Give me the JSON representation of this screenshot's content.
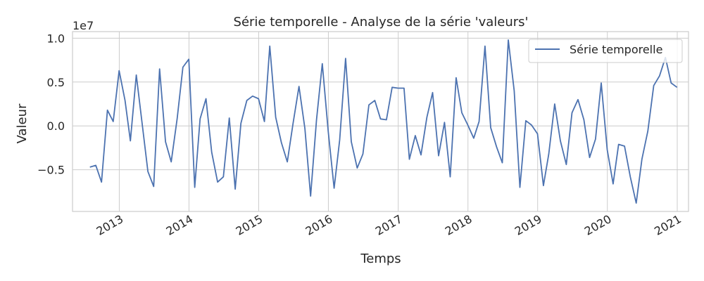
{
  "chart_data": {
    "type": "line",
    "title": "Série temporelle - Analyse de la série 'valeurs'",
    "xlabel": "Temps",
    "ylabel": "Valeur",
    "y_offset_label": "1e7",
    "x_type": "date",
    "xlim": [
      "2012-05-01",
      "2021-03-01"
    ],
    "ylim": [
      -0.975,
      1.075
    ],
    "y_scale_multiplier": 10000000,
    "x_ticks": [
      "2013",
      "2014",
      "2015",
      "2016",
      "2017",
      "2018",
      "2019",
      "2020",
      "2021"
    ],
    "y_ticks": [
      {
        "value": -0.5,
        "label": "−0.5"
      },
      {
        "value": 0.0,
        "label": "0.0"
      },
      {
        "value": 0.5,
        "label": "0.5"
      },
      {
        "value": 1.0,
        "label": "1.0"
      }
    ],
    "grid": true,
    "legend_position": "upper right",
    "series": [
      {
        "name": "Série temporelle",
        "color": "#4c72b0",
        "points": [
          [
            "2012-07-31",
            -0.47
          ],
          [
            "2012-08-31",
            -0.45
          ],
          [
            "2012-09-30",
            -0.64
          ],
          [
            "2012-10-31",
            0.18
          ],
          [
            "2012-11-30",
            0.05
          ],
          [
            "2012-12-31",
            0.63
          ],
          [
            "2013-01-31",
            0.29
          ],
          [
            "2013-02-28",
            -0.17
          ],
          [
            "2013-03-31",
            0.58
          ],
          [
            "2013-04-30",
            0.04
          ],
          [
            "2013-05-31",
            -0.52
          ],
          [
            "2013-06-30",
            -0.69
          ],
          [
            "2013-07-31",
            0.65
          ],
          [
            "2013-08-31",
            -0.18
          ],
          [
            "2013-09-30",
            -0.41
          ],
          [
            "2013-10-31",
            0.08
          ],
          [
            "2013-11-30",
            0.67
          ],
          [
            "2013-12-31",
            0.76
          ],
          [
            "2014-01-31",
            -0.7
          ],
          [
            "2014-02-28",
            0.08
          ],
          [
            "2014-03-31",
            0.31
          ],
          [
            "2014-04-30",
            -0.3
          ],
          [
            "2014-05-31",
            -0.64
          ],
          [
            "2014-06-30",
            -0.58
          ],
          [
            "2014-07-31",
            0.09
          ],
          [
            "2014-08-31",
            -0.72
          ],
          [
            "2014-09-30",
            0.03
          ],
          [
            "2014-10-31",
            0.29
          ],
          [
            "2014-11-30",
            0.34
          ],
          [
            "2014-12-31",
            0.31
          ],
          [
            "2015-01-31",
            0.05
          ],
          [
            "2015-02-28",
            0.91
          ],
          [
            "2015-03-31",
            0.1
          ],
          [
            "2015-04-30",
            -0.19
          ],
          [
            "2015-05-31",
            -0.41
          ],
          [
            "2015-06-30",
            0.03
          ],
          [
            "2015-07-31",
            0.45
          ],
          [
            "2015-08-31",
            -0.03
          ],
          [
            "2015-09-30",
            -0.8
          ],
          [
            "2015-10-31",
            0.07
          ],
          [
            "2015-11-30",
            0.71
          ],
          [
            "2015-12-31",
            -0.06
          ],
          [
            "2016-01-31",
            -0.71
          ],
          [
            "2016-02-29",
            -0.16
          ],
          [
            "2016-03-31",
            0.77
          ],
          [
            "2016-04-30",
            -0.18
          ],
          [
            "2016-05-31",
            -0.48
          ],
          [
            "2016-06-30",
            -0.32
          ],
          [
            "2016-07-31",
            0.24
          ],
          [
            "2016-08-31",
            0.29
          ],
          [
            "2016-09-30",
            0.08
          ],
          [
            "2016-10-31",
            0.07
          ],
          [
            "2016-11-30",
            0.44
          ],
          [
            "2016-12-31",
            0.43
          ],
          [
            "2017-01-31",
            0.43
          ],
          [
            "2017-02-28",
            -0.38
          ],
          [
            "2017-03-31",
            -0.11
          ],
          [
            "2017-04-30",
            -0.33
          ],
          [
            "2017-05-31",
            0.1
          ],
          [
            "2017-06-30",
            0.38
          ],
          [
            "2017-07-31",
            -0.34
          ],
          [
            "2017-08-31",
            0.04
          ],
          [
            "2017-09-30",
            -0.58
          ],
          [
            "2017-10-31",
            0.55
          ],
          [
            "2017-11-30",
            0.15
          ],
          [
            "2017-12-31",
            0.01
          ],
          [
            "2018-01-31",
            -0.14
          ],
          [
            "2018-02-28",
            0.05
          ],
          [
            "2018-03-31",
            0.91
          ],
          [
            "2018-04-30",
            -0.02
          ],
          [
            "2018-05-31",
            -0.24
          ],
          [
            "2018-06-30",
            -0.42
          ],
          [
            "2018-07-31",
            0.98
          ],
          [
            "2018-08-31",
            0.4
          ],
          [
            "2018-09-30",
            -0.7
          ],
          [
            "2018-10-31",
            0.06
          ],
          [
            "2018-11-30",
            0.01
          ],
          [
            "2018-12-31",
            -0.09
          ],
          [
            "2019-01-31",
            -0.68
          ],
          [
            "2019-02-28",
            -0.32
          ],
          [
            "2019-03-31",
            0.25
          ],
          [
            "2019-04-30",
            -0.17
          ],
          [
            "2019-05-31",
            -0.44
          ],
          [
            "2019-06-30",
            0.15
          ],
          [
            "2019-07-31",
            0.3
          ],
          [
            "2019-08-31",
            0.07
          ],
          [
            "2019-09-30",
            -0.36
          ],
          [
            "2019-10-31",
            -0.15
          ],
          [
            "2019-11-30",
            0.49
          ],
          [
            "2019-12-31",
            -0.27
          ],
          [
            "2020-01-31",
            -0.66
          ],
          [
            "2020-02-29",
            -0.21
          ],
          [
            "2020-03-31",
            -0.23
          ],
          [
            "2020-04-30",
            -0.58
          ],
          [
            "2020-05-31",
            -0.88
          ],
          [
            "2020-06-30",
            -0.38
          ],
          [
            "2020-07-31",
            -0.06
          ],
          [
            "2020-08-31",
            0.46
          ],
          [
            "2020-09-30",
            0.57
          ],
          [
            "2020-10-31",
            0.78
          ],
          [
            "2020-11-30",
            0.49
          ],
          [
            "2020-12-31",
            0.44
          ]
        ]
      }
    ]
  }
}
